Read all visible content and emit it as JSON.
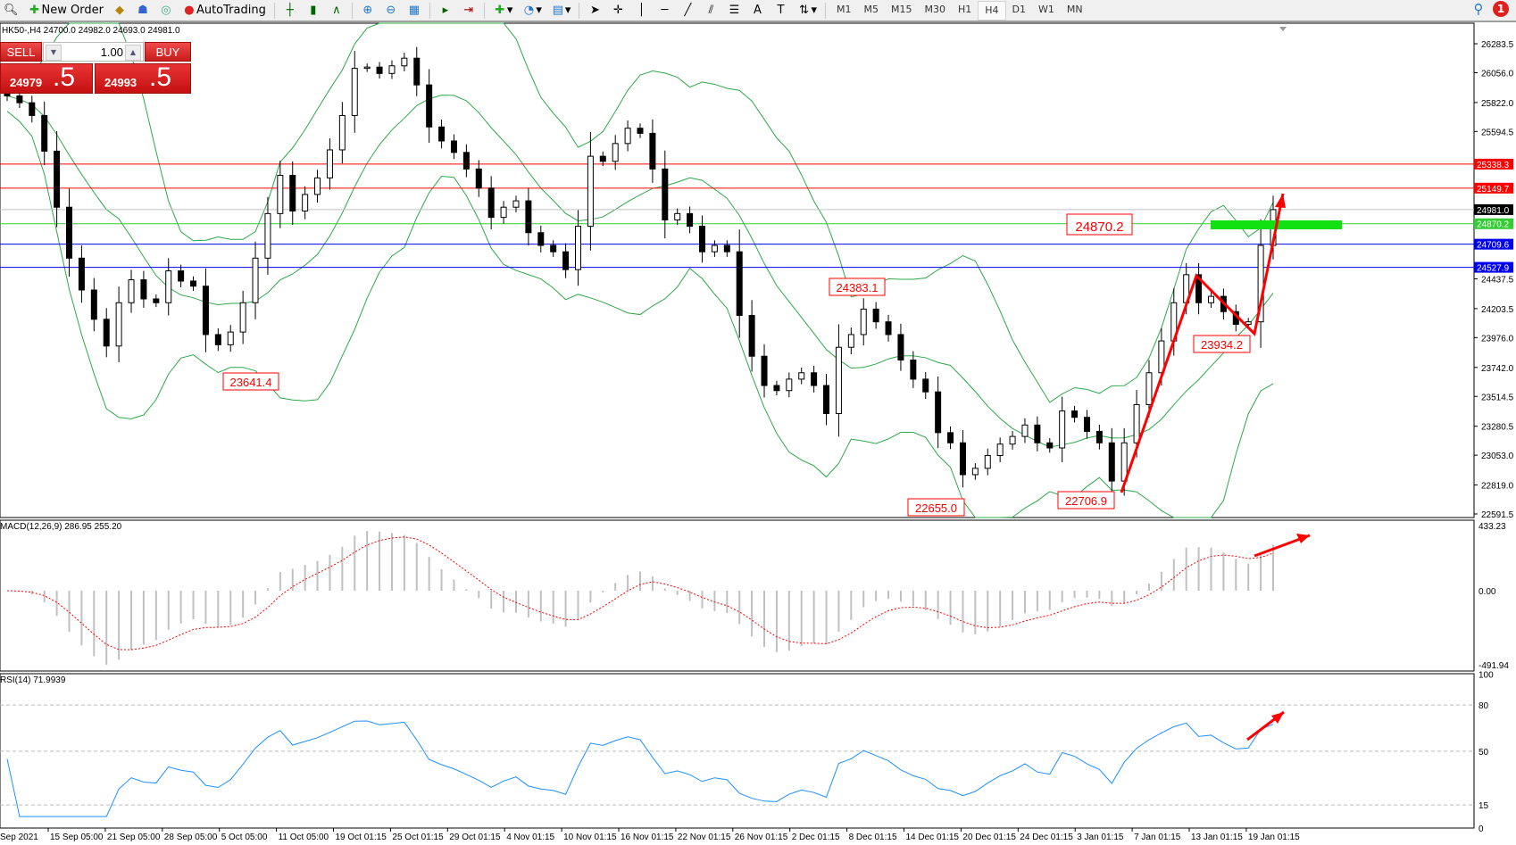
{
  "toolbar": {
    "new_order_label": "New Order",
    "autotrading_label": "AutoTrading",
    "timeframes": [
      "M1",
      "M5",
      "M15",
      "M30",
      "H1",
      "H4",
      "D1",
      "W1",
      "MN"
    ],
    "active_timeframe": "H4",
    "notification_count": "1"
  },
  "chart_header": "HK50-,H4  24700.0 24982.0 24693.0 24981.0",
  "trade_panel": {
    "sell_label": "SELL",
    "buy_label": "BUY",
    "lot": "1.00",
    "sell_price_main": "24979",
    "sell_price_big": ".5",
    "buy_price_main": "24993",
    "buy_price_big": ".5"
  },
  "indicators": {
    "macd_label": "MACD(12,26,9) 286.95 255.20",
    "rsi_label": "RSI(14) 71.9939"
  },
  "colors": {
    "candle_bull": "#ffffff",
    "candle_bear": "#000000",
    "bollinger": "#2ea84a",
    "resistance": "#ff0000",
    "support": "#0000cc",
    "target": "#33cc33",
    "annotation": "#ff0000",
    "macd_hist": "#c0c0c0",
    "macd_signal": "#ff0000",
    "rsi": "#1e90ff"
  },
  "chart_data": [
    {
      "type": "candlestick",
      "symbol": "HK50-",
      "timeframe": "H4",
      "close": [
        25874,
        25820,
        25720,
        25440,
        25000,
        24600,
        24350,
        24120,
        23910,
        24250,
        24430,
        24280,
        24250,
        24500,
        24420,
        24380,
        24000,
        23920,
        24020,
        24250,
        24600,
        24950,
        25250,
        24970,
        25100,
        25230,
        25450,
        25720,
        26090,
        26100,
        26050,
        26110,
        26170,
        25960,
        25630,
        25520,
        25430,
        25300,
        25150,
        24920,
        25000,
        25050,
        24800,
        24700,
        24650,
        24510,
        24850,
        25400,
        25360,
        25500,
        25620,
        25580,
        25300,
        24900,
        24950,
        24850,
        24650,
        24700,
        24650,
        24150,
        23830,
        23600,
        23560,
        23650,
        23700,
        23600,
        23380,
        23900,
        24000,
        24200,
        24100,
        24000,
        23800,
        23650,
        23550,
        23230,
        23150,
        22900,
        22950,
        23050,
        23140,
        23200,
        23290,
        23150,
        23110,
        23400,
        23350,
        23240,
        23150,
        22850,
        23150,
        23450,
        23700,
        23950,
        24250,
        24470,
        24250,
        24300,
        24180,
        24080,
        24100,
        24700,
        24981
      ],
      "price_axis": {
        "min": 22591.5,
        "max": 26283.5,
        "ticks": [
          "26283.5",
          "26056.0",
          "25822.0",
          "25594.5",
          "25338.3",
          "25149.7",
          "24981.0",
          "24870.2",
          "24709.6",
          "24527.9",
          "24437.5",
          "24203.5",
          "23976.0",
          "23742.0",
          "23514.5",
          "23280.5",
          "23053.0",
          "22819.0",
          "22591.5"
        ]
      },
      "price_axis_labels": [
        {
          "text": "26283.5",
          "value": 26283.5
        },
        {
          "text": "26056.0",
          "value": 26056.0
        },
        {
          "text": "25822.0",
          "value": 25822.0
        },
        {
          "text": "25594.5",
          "value": 25594.5
        },
        {
          "text": "24437.5",
          "value": 24437.5
        },
        {
          "text": "24203.5",
          "value": 24203.5
        },
        {
          "text": "23976.0",
          "value": 23976.0
        },
        {
          "text": "23742.0",
          "value": 23742.0
        },
        {
          "text": "23514.5",
          "value": 23514.5
        },
        {
          "text": "23280.5",
          "value": 23280.5
        },
        {
          "text": "23053.0",
          "value": 23053.0
        },
        {
          "text": "22819.0",
          "value": 22819.0
        },
        {
          "text": "22591.5",
          "value": 22591.5
        }
      ],
      "horizontal_lines": [
        {
          "text": "25338.3",
          "value": 25338.3,
          "color": "#ff0000"
        },
        {
          "text": "25149.7",
          "value": 25149.7,
          "color": "#ff0000"
        },
        {
          "text": "24981.0",
          "value": 24981.0,
          "color": "#c0c0c0",
          "label_bg": "#000000"
        },
        {
          "text": "24870.2",
          "value": 24870.2,
          "color": "#33cc33"
        },
        {
          "text": "24709.6",
          "value": 24709.6,
          "color": "#0000ee"
        },
        {
          "text": "24527.9",
          "value": 24527.9,
          "color": "#0000ee"
        }
      ],
      "price_annotations": [
        "24870.2",
        "24383.1",
        "23641.4",
        "22655.0",
        "22706.9",
        "23934.2"
      ],
      "bollinger": {
        "period": 20,
        "deviation": 2
      },
      "x_tick_labels": [
        "Sep 2021",
        "15 Sep 05:00",
        "21 Sep 05:00",
        "28 Sep 05:00",
        "5 Oct 05:00",
        "11 Oct 05:00",
        "19 Oct 01:15",
        "25 Oct 01:15",
        "29 Oct 01:15",
        "4 Nov 01:15",
        "10 Nov 01:15",
        "16 Nov 01:15",
        "22 Nov 01:15",
        "26 Nov 01:15",
        "2 Dec 01:15",
        "8 Dec 01:15",
        "14 Dec 01:15",
        "20 Dec 01:15",
        "24 Dec 01:15",
        "3 Jan 01:15",
        "7 Jan 01:15",
        "13 Jan 01:15",
        "19 Jan 01:15"
      ]
    },
    {
      "type": "bar",
      "name": "MACD(12,26,9)",
      "current": [
        286.95,
        255.2
      ],
      "ylim": [
        -491.94,
        433.23
      ],
      "axis_ticks": [
        "433.23",
        "0.00",
        "-491.94"
      ]
    },
    {
      "type": "line",
      "name": "RSI(14)",
      "current": 71.9939,
      "ylim": [
        0,
        100
      ],
      "levels": [
        80,
        50,
        15
      ],
      "axis_ticks": [
        "100",
        "80",
        "50",
        "15",
        "0"
      ]
    }
  ]
}
